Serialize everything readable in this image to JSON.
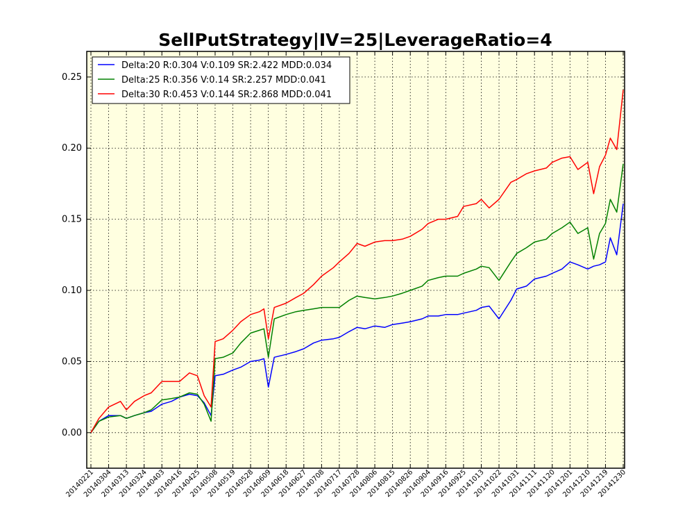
{
  "chart_data": {
    "type": "line",
    "title": "SellPutStrategy|IV=25|LeverageRatio=4",
    "xlabel": "",
    "ylabel": "",
    "ylim": [
      -0.025,
      0.268
    ],
    "y_ticks": [
      "0.00",
      "0.05",
      "0.10",
      "0.15",
      "0.20",
      "0.25"
    ],
    "x_tick_labels": [
      "20140221",
      "20140304",
      "20140313",
      "20140324",
      "20140403",
      "20140416",
      "20140425",
      "20140508",
      "20140519",
      "20140528",
      "20140609",
      "20140618",
      "20140627",
      "20140708",
      "20140717",
      "20140728",
      "20140806",
      "20140815",
      "20140826",
      "20140904",
      "20140916",
      "20140925",
      "20141013",
      "20141022",
      "20141031",
      "20141111",
      "20141120",
      "20141201",
      "20141210",
      "20141219",
      "20141230"
    ],
    "grid": true,
    "background": "#ffffe0",
    "legend_position": "top-left",
    "series": [
      {
        "name": "Delta:20 R:0.304 V:0.109 SR:2.422 MDD:0.034",
        "color": "#0000ff",
        "x": [
          "20140221",
          "20140226",
          "20140304",
          "20140310",
          "20140313",
          "20140318",
          "20140324",
          "20140328",
          "20140403",
          "20140410",
          "20140416",
          "20140421",
          "20140425",
          "20140430",
          "20140505",
          "20140508",
          "20140513",
          "20140519",
          "20140523",
          "20140528",
          "20140603",
          "20140606",
          "20140609",
          "20140612",
          "20140618",
          "20140623",
          "20140627",
          "20140703",
          "20140708",
          "20140714",
          "20140717",
          "20140723",
          "20140728",
          "20140801",
          "20140806",
          "20140811",
          "20140815",
          "20140821",
          "20140826",
          "20140901",
          "20140904",
          "20140911",
          "20140916",
          "20140922",
          "20140925",
          "20141008",
          "20141013",
          "20141017",
          "20141022",
          "20141028",
          "20141031",
          "20141106",
          "20141111",
          "20141117",
          "20141120",
          "20141126",
          "20141201",
          "20141205",
          "20141210",
          "20141213",
          "20141216",
          "20141219",
          "20141222",
          "20141226",
          "20141230"
        ],
        "values": [
          0.0,
          0.008,
          0.012,
          0.012,
          0.01,
          0.012,
          0.014,
          0.015,
          0.02,
          0.022,
          0.025,
          0.027,
          0.026,
          0.021,
          0.012,
          0.04,
          0.041,
          0.044,
          0.046,
          0.05,
          0.051,
          0.052,
          0.032,
          0.053,
          0.055,
          0.057,
          0.059,
          0.063,
          0.065,
          0.066,
          0.067,
          0.071,
          0.074,
          0.073,
          0.075,
          0.074,
          0.076,
          0.077,
          0.078,
          0.08,
          0.082,
          0.082,
          0.083,
          0.083,
          0.084,
          0.086,
          0.088,
          0.089,
          0.08,
          0.093,
          0.101,
          0.103,
          0.108,
          0.11,
          0.112,
          0.115,
          0.12,
          0.118,
          0.115,
          0.117,
          0.118,
          0.12,
          0.137,
          0.125,
          0.161
        ]
      },
      {
        "name": "Delta:25 R:0.356 V:0.14 SR:2.257 MDD:0.041",
        "color": "#008000",
        "x": [
          "20140221",
          "20140226",
          "20140304",
          "20140310",
          "20140313",
          "20140318",
          "20140324",
          "20140328",
          "20140403",
          "20140410",
          "20140416",
          "20140421",
          "20140425",
          "20140430",
          "20140505",
          "20140508",
          "20140513",
          "20140519",
          "20140523",
          "20140528",
          "20140603",
          "20140606",
          "20140609",
          "20140612",
          "20140618",
          "20140623",
          "20140627",
          "20140703",
          "20140708",
          "20140714",
          "20140717",
          "20140723",
          "20140728",
          "20140801",
          "20140806",
          "20140811",
          "20140815",
          "20140821",
          "20140826",
          "20140901",
          "20140904",
          "20140911",
          "20140916",
          "20140922",
          "20140925",
          "20141008",
          "20141013",
          "20141017",
          "20141022",
          "20141028",
          "20141031",
          "20141106",
          "20141111",
          "20141117",
          "20141120",
          "20141126",
          "20141201",
          "20141205",
          "20141210",
          "20141213",
          "20141216",
          "20141219",
          "20141222",
          "20141226",
          "20141230"
        ],
        "values": [
          0.0,
          0.008,
          0.011,
          0.012,
          0.01,
          0.012,
          0.014,
          0.016,
          0.023,
          0.024,
          0.025,
          0.028,
          0.027,
          0.02,
          0.008,
          0.052,
          0.053,
          0.056,
          0.063,
          0.07,
          0.072,
          0.073,
          0.053,
          0.08,
          0.083,
          0.085,
          0.086,
          0.087,
          0.088,
          0.088,
          0.088,
          0.093,
          0.096,
          0.095,
          0.094,
          0.095,
          0.096,
          0.098,
          0.1,
          0.103,
          0.107,
          0.109,
          0.11,
          0.11,
          0.112,
          0.115,
          0.117,
          0.116,
          0.107,
          0.12,
          0.126,
          0.13,
          0.134,
          0.136,
          0.14,
          0.144,
          0.148,
          0.14,
          0.144,
          0.122,
          0.14,
          0.147,
          0.164,
          0.155,
          0.189
        ]
      },
      {
        "name": "Delta:30 R:0.453 V:0.144 SR:2.868 MDD:0.041",
        "color": "#ff0000",
        "x": [
          "20140221",
          "20140226",
          "20140304",
          "20140310",
          "20140313",
          "20140318",
          "20140324",
          "20140328",
          "20140403",
          "20140410",
          "20140416",
          "20140421",
          "20140425",
          "20140430",
          "20140505",
          "20140508",
          "20140513",
          "20140519",
          "20140523",
          "20140528",
          "20140603",
          "20140606",
          "20140609",
          "20140612",
          "20140618",
          "20140623",
          "20140627",
          "20140703",
          "20140708",
          "20140714",
          "20140717",
          "20140723",
          "20140728",
          "20140801",
          "20140806",
          "20140811",
          "20140815",
          "20140821",
          "20140826",
          "20140901",
          "20140904",
          "20140911",
          "20140916",
          "20140922",
          "20140925",
          "20141008",
          "20141013",
          "20141017",
          "20141022",
          "20141028",
          "20141031",
          "20141106",
          "20141111",
          "20141117",
          "20141120",
          "20141126",
          "20141201",
          "20141205",
          "20141210",
          "20141213",
          "20141216",
          "20141219",
          "20141222",
          "20141226",
          "20141230"
        ],
        "values": [
          0.0,
          0.01,
          0.018,
          0.022,
          0.016,
          0.022,
          0.026,
          0.028,
          0.036,
          0.036,
          0.036,
          0.042,
          0.04,
          0.026,
          0.018,
          0.064,
          0.066,
          0.072,
          0.078,
          0.083,
          0.085,
          0.087,
          0.066,
          0.088,
          0.091,
          0.095,
          0.098,
          0.104,
          0.11,
          0.116,
          0.12,
          0.126,
          0.133,
          0.131,
          0.134,
          0.135,
          0.135,
          0.136,
          0.138,
          0.143,
          0.147,
          0.15,
          0.15,
          0.152,
          0.159,
          0.161,
          0.164,
          0.158,
          0.164,
          0.176,
          0.178,
          0.182,
          0.184,
          0.186,
          0.19,
          0.193,
          0.194,
          0.185,
          0.19,
          0.168,
          0.187,
          0.195,
          0.207,
          0.199,
          0.241
        ]
      }
    ]
  }
}
